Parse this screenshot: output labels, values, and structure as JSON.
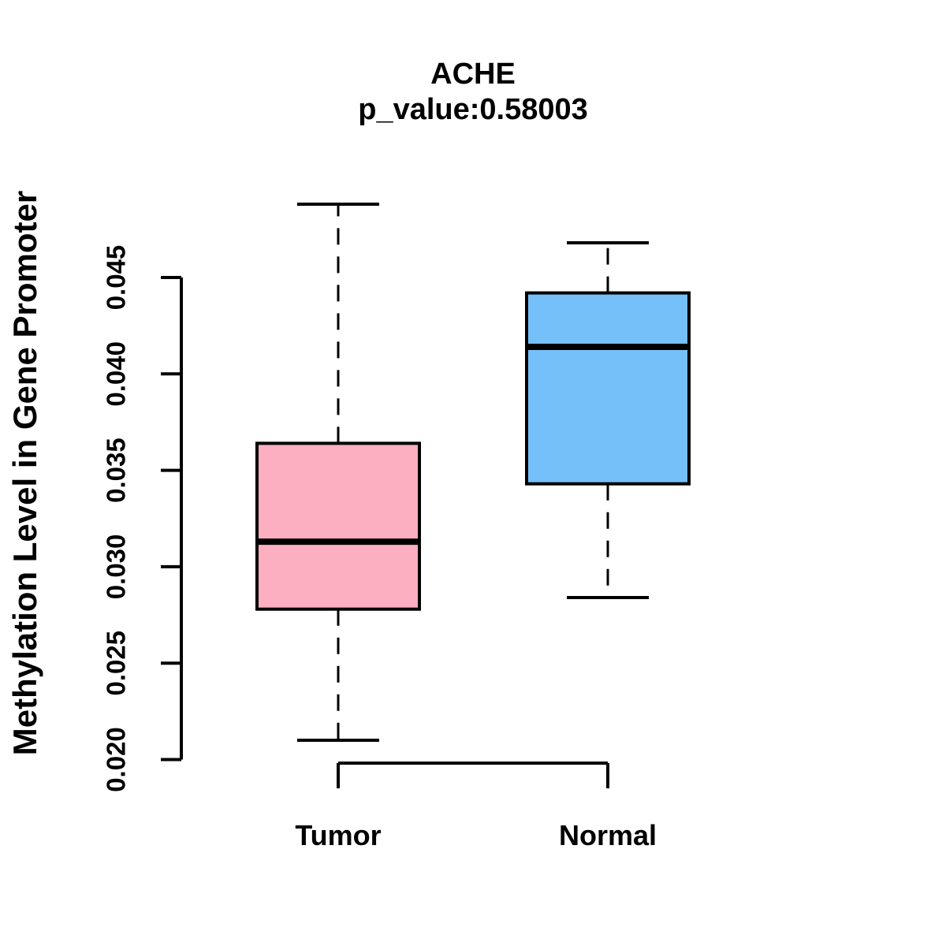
{
  "header": {
    "title": "ACHE",
    "subtitle": "p_value:0.58003"
  },
  "chart_data": {
    "type": "boxplot",
    "title": "ACHE",
    "subtitle": "p_value:0.58003",
    "xlabel": "",
    "ylabel": "Methylation Level in Gene Promoter",
    "ylim": [
      0.0185,
      0.049
    ],
    "yticks": [
      0.02,
      0.025,
      0.03,
      0.035,
      0.04,
      0.045
    ],
    "ytick_labels": [
      "0.020",
      "0.025",
      "0.030",
      "0.035",
      "0.040",
      "0.045"
    ],
    "categories": [
      "Tumor",
      "Normal"
    ],
    "grid": "off",
    "legend": "none",
    "series": [
      {
        "name": "Tumor",
        "box_color": "#FDAFC2",
        "whisker_low": 0.021,
        "q1": 0.0278,
        "median": 0.0313,
        "q3": 0.0364,
        "whisker_high": 0.0488
      },
      {
        "name": "Normal",
        "box_color": "#75C0F8",
        "whisker_low": 0.0284,
        "q1": 0.0343,
        "median": 0.0414,
        "q3": 0.0442,
        "whisker_high": 0.0468
      }
    ],
    "style": {
      "stroke_color": "#000000",
      "background": "#ffffff"
    }
  }
}
